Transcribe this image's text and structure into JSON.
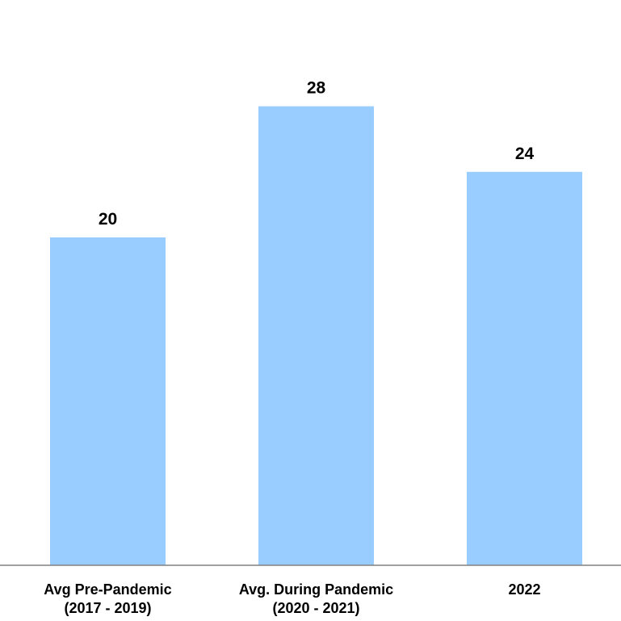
{
  "chart_data": {
    "type": "bar",
    "title": "",
    "xlabel": "",
    "ylabel": "",
    "categories": [
      [
        "Avg Pre-Pandemic",
        "(2017 - 2019)"
      ],
      [
        "Avg. During Pandemic",
        "(2020 - 2021)"
      ],
      [
        "2022"
      ]
    ],
    "values": [
      20,
      28,
      24
    ],
    "data_labels": [
      "20",
      "28",
      "24"
    ],
    "ylim": [
      0,
      30
    ],
    "grid": false,
    "legend": "none",
    "bar_color": "#99CCFF",
    "axis_color": "#808080"
  }
}
